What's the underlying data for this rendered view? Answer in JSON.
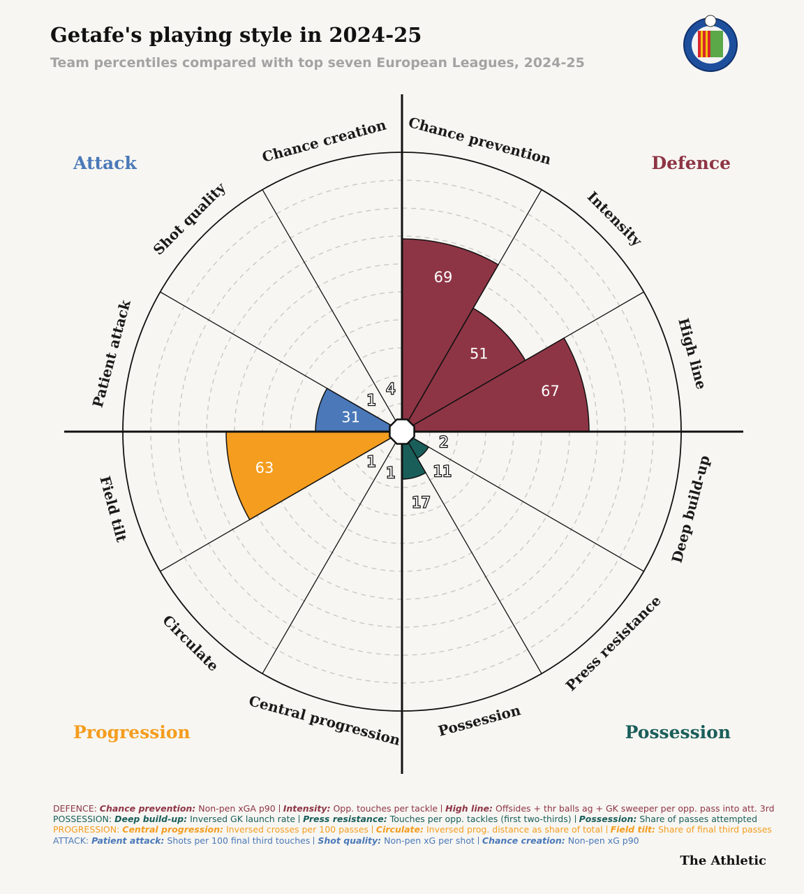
{
  "chart_data": {
    "type": "polar_bar",
    "title": "Getafe's playing style in 2024-25",
    "subtitle": "Team percentiles compared with top seven European Leagues, 2024-25",
    "categories": [
      "Chance prevention",
      "Intensity",
      "High line",
      "Deep build-up",
      "Press resistance",
      "Possession",
      "Central progression",
      "Circulate",
      "Field tilt",
      "Patient attack",
      "Shot quality",
      "Chance creation"
    ],
    "values": [
      69,
      51,
      67,
      2,
      11,
      17,
      1,
      1,
      63,
      31,
      1,
      4
    ],
    "colors": [
      "#8e3545",
      "#8e3545",
      "#8e3545",
      "#1a5e5a",
      "#1a5e5a",
      "#1a5e5a",
      "#f49d1f",
      "#f49d1f",
      "#f49d1f",
      "#4a78b8",
      "#4a78b8",
      "#4a78b8"
    ],
    "rlim": [
      0,
      100
    ],
    "rticks": [
      10,
      20,
      30,
      40,
      50,
      60,
      70,
      80,
      90
    ],
    "grid": true,
    "groups": [
      {
        "name": "Attack",
        "color": "#4a78b8",
        "corner": "top-left"
      },
      {
        "name": "Defence",
        "color": "#8e3545",
        "corner": "top-right"
      },
      {
        "name": "Progression",
        "color": "#f49d1f",
        "corner": "bottom-left"
      },
      {
        "name": "Possession",
        "color": "#1a5e5a",
        "corner": "bottom-right"
      }
    ],
    "footnotes": [
      {
        "group": "DEFENCE:",
        "color": "#8e3545",
        "items": [
          {
            "name": "Chance prevention:",
            "desc": "Non-pen xGA p90"
          },
          {
            "name": "Intensity:",
            "desc": "Opp. touches per tackle"
          },
          {
            "name": "High line:",
            "desc": "Offsides + thr balls ag + GK sweeper per opp. pass into att. 3rd"
          }
        ]
      },
      {
        "group": "POSSESSION:",
        "color": "#1a5e5a",
        "items": [
          {
            "name": "Deep build-up:",
            "desc": "Inversed GK launch rate"
          },
          {
            "name": "Press resistance:",
            "desc": "Touches per opp. tackles (first two-thirds)"
          },
          {
            "name": "Possession:",
            "desc": "Share of passes attempted"
          }
        ]
      },
      {
        "group": "PROGRESSION:",
        "color": "#f49d1f",
        "items": [
          {
            "name": "Central progression:",
            "desc": "Inversed crosses per 100 passes"
          },
          {
            "name": "Circulate:",
            "desc": "Inversed prog. distance as share of total"
          },
          {
            "name": "Field tilt:",
            "desc": "Share of final third passes"
          }
        ]
      },
      {
        "group": "ATTACK:",
        "color": "#4a78b8",
        "items": [
          {
            "name": "Patient attack:",
            "desc": "Shots per 100 final third touches"
          },
          {
            "name": "Shot quality:",
            "desc": "Non-pen xG per shot"
          },
          {
            "name": "Chance creation:",
            "desc": "Non-pen xG p90"
          }
        ]
      }
    ],
    "source": "The Athletic"
  }
}
